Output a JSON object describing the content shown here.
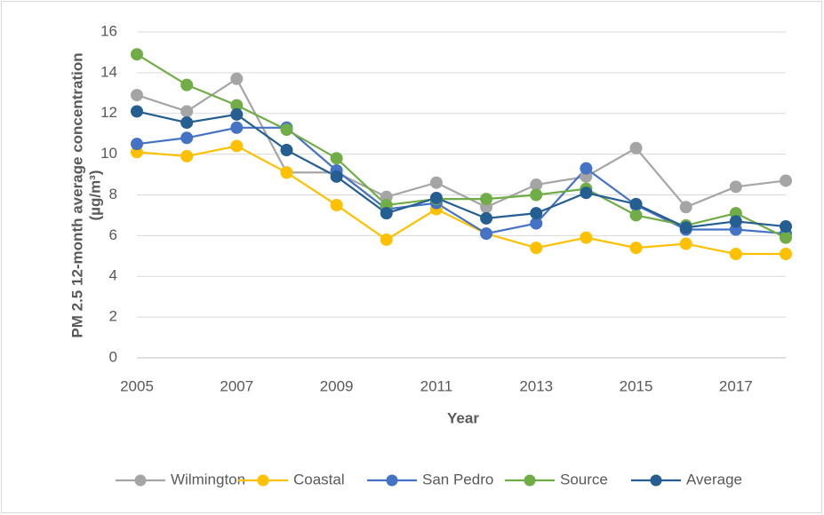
{
  "chart_data": {
    "type": "line",
    "ylabel": [
      "PM 2.5 12-month average concentration",
      "(µg/m³)"
    ],
    "xlabel": "Year",
    "x": [
      2005,
      2006,
      2007,
      2008,
      2009,
      2010,
      2011,
      2012,
      2013,
      2014,
      2015,
      2016,
      2017,
      2018
    ],
    "xlim": [
      2005,
      2018
    ],
    "xticks": [
      2005,
      2007,
      2009,
      2011,
      2013,
      2015,
      2017
    ],
    "ylim": [
      0,
      16
    ],
    "yticks": [
      0,
      2,
      4,
      6,
      8,
      10,
      12,
      14,
      16
    ],
    "grid": true,
    "legend": "bottom",
    "series": [
      {
        "name": "Wilmington",
        "color": "#a5a5a5",
        "values": [
          12.9,
          12.1,
          13.7,
          9.1,
          9.1,
          7.9,
          8.6,
          7.4,
          8.5,
          8.9,
          10.3,
          7.4,
          8.4,
          8.7
        ]
      },
      {
        "name": "Coastal",
        "color": "#ffc000",
        "values": [
          10.1,
          9.9,
          10.4,
          9.1,
          7.5,
          5.8,
          7.3,
          6.1,
          5.4,
          5.9,
          5.4,
          5.6,
          5.1,
          5.1
        ]
      },
      {
        "name": "San Pedro",
        "color": "#4472c4",
        "values": [
          10.5,
          10.8,
          11.3,
          11.3,
          9.2,
          7.3,
          7.6,
          6.1,
          6.6,
          9.3,
          7.5,
          6.3,
          6.3,
          6.1
        ]
      },
      {
        "name": "Source",
        "color": "#70ad47",
        "values": [
          14.9,
          13.4,
          12.4,
          11.2,
          9.8,
          7.5,
          7.8,
          7.8,
          8.0,
          8.3,
          7.0,
          6.5,
          7.1,
          5.9
        ]
      },
      {
        "name": "Average",
        "color": "#255e91",
        "values": [
          12.1,
          11.55,
          11.95,
          10.2,
          8.9,
          7.1,
          7.85,
          6.85,
          7.1,
          8.1,
          7.55,
          6.4,
          6.7,
          6.45
        ]
      }
    ]
  }
}
